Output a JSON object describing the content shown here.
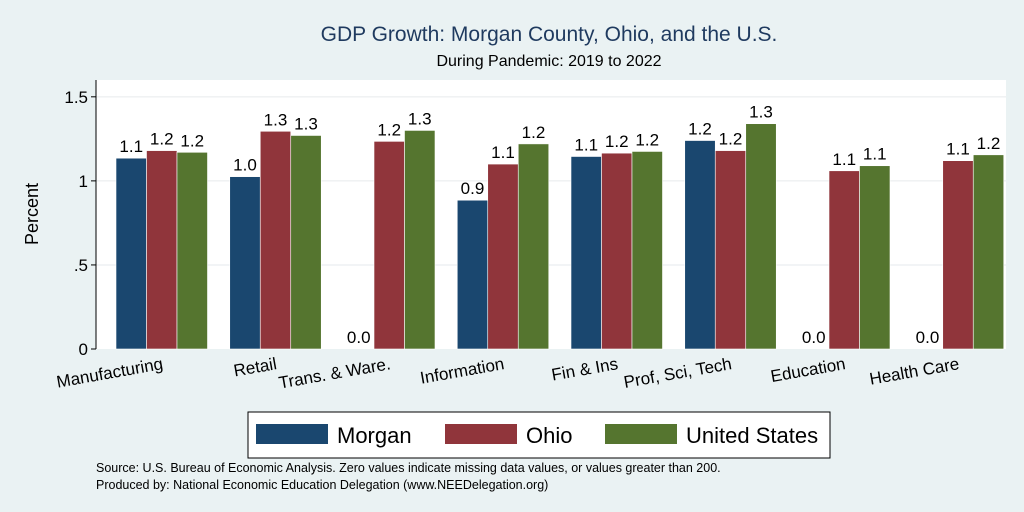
{
  "chart_data": {
    "type": "bar",
    "title": "GDP Growth: Morgan County, Ohio, and the U.S.",
    "subtitle": "During Pandemic: 2019 to 2022",
    "ylabel": "Percent",
    "xlabel": "",
    "ylim": [
      0,
      1.6
    ],
    "yticks": [
      0,
      0.5,
      1,
      1.5
    ],
    "ytick_labels": [
      "0",
      ".5",
      "1",
      "1.5"
    ],
    "grid": true,
    "legend_position": "bottom",
    "categories": [
      "Manufacturing",
      "Retail",
      "Trans. & Ware.",
      "Information",
      "Fin & Ins",
      "Prof, Sci, Tech",
      "Education",
      "Health Care"
    ],
    "series": [
      {
        "name": "Morgan",
        "color": "#1a476f",
        "values": [
          1.135,
          1.025,
          0,
          0.885,
          1.145,
          1.24,
          0,
          0
        ],
        "labels": [
          "1.1",
          "1.0",
          "0.0",
          "0.9",
          "1.1",
          "1.2",
          "0.0",
          "0.0"
        ]
      },
      {
        "name": "Ohio",
        "color": "#90353b",
        "values": [
          1.18,
          1.295,
          1.235,
          1.1,
          1.165,
          1.18,
          1.06,
          1.12
        ],
        "labels": [
          "1.2",
          "1.3",
          "1.2",
          "1.1",
          "1.2",
          "1.2",
          "1.1",
          "1.1"
        ]
      },
      {
        "name": "United States",
        "color": "#55752f",
        "values": [
          1.17,
          1.27,
          1.3,
          1.22,
          1.175,
          1.34,
          1.09,
          1.155
        ],
        "labels": [
          "1.2",
          "1.3",
          "1.3",
          "1.2",
          "1.2",
          "1.3",
          "1.1",
          "1.2"
        ]
      }
    ],
    "footnotes": [
      "Source: U.S. Bureau of Economic Analysis. Zero values indicate missing data values, or values greater than 200.",
      "Produced by: National Economic Education Delegation (www.NEEDelegation.org)"
    ]
  }
}
